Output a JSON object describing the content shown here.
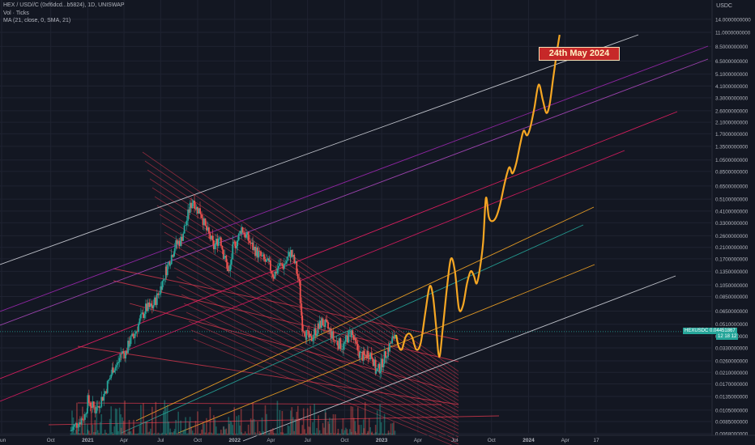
{
  "header": {
    "symbol_line": "HEX / USD//C (0xf6dcd...b5824), 1D, UNISWAP",
    "indicator1": "Vol · Ticks",
    "indicator2": "MA (21, close, 0, SMA, 21)"
  },
  "unit_label": "USDC",
  "annotation": "24th May 2024",
  "price_tag": {
    "symbol": "HEXUSDC",
    "value": "0.04451867",
    "sub": "12 18 12"
  },
  "chart_data": {
    "type": "line",
    "y_scale": "log",
    "ylim": [
      0.0066,
      15.5
    ],
    "x_ticks": [
      "Jun",
      "Oct",
      "2021",
      "Apr",
      "Jul",
      "Oct",
      "2022",
      "Apr",
      "Jul",
      "Oct",
      "2023",
      "Apr",
      "Jul",
      "Oct",
      "2024",
      "Apr",
      "17"
    ],
    "y_ticks": [
      "14.0000000000",
      "11.0000000000",
      "8.5000000000",
      "6.5000000000",
      "5.1000000000",
      "4.1000000000",
      "3.3000000000",
      "2.6000000000",
      "2.1000000000",
      "1.7000000000",
      "1.3500000000",
      "1.0500000000",
      "0.8500000000",
      "0.6500000000",
      "0.5100000000",
      "0.4100000000",
      "0.3300000000",
      "0.2600000000",
      "0.2100000000",
      "0.1700000000",
      "0.1350000000",
      "0.1050000000",
      "0.0850000000",
      "0.0650000000",
      "0.0510000000",
      "0.0410000000",
      "0.0330000000",
      "0.0260000000",
      "0.0210000000",
      "0.0170000000",
      "0.0135000000",
      "0.0105000000",
      "0.0085000000",
      "0.0068000000"
    ],
    "y_tick_values": [
      14,
      11,
      8.5,
      6.5,
      5.1,
      4.1,
      3.3,
      2.6,
      2.1,
      1.7,
      1.35,
      1.05,
      0.85,
      0.65,
      0.51,
      0.41,
      0.33,
      0.26,
      0.21,
      0.17,
      0.135,
      0.105,
      0.085,
      0.065,
      0.051,
      0.041,
      0.033,
      0.026,
      0.021,
      0.017,
      0.0135,
      0.0105,
      0.0085,
      0.0068
    ],
    "price_series": [
      [
        "2020-11-20",
        0.0072
      ],
      [
        "2020-12-10",
        0.0085
      ],
      [
        "2020-12-25",
        0.0095
      ],
      [
        "2021-01-01",
        0.0125
      ],
      [
        "2021-01-20",
        0.0105
      ],
      [
        "2021-02-10",
        0.014
      ],
      [
        "2021-02-25",
        0.019
      ],
      [
        "2021-03-05",
        0.023
      ],
      [
        "2021-03-15",
        0.024
      ],
      [
        "2021-03-25",
        0.03
      ],
      [
        "2021-04-05",
        0.03
      ],
      [
        "2021-04-15",
        0.037
      ],
      [
        "2021-04-25",
        0.041
      ],
      [
        "2021-05-10",
        0.054
      ],
      [
        "2021-05-25",
        0.068
      ],
      [
        "2021-06-10",
        0.07
      ],
      [
        "2021-06-25",
        0.088
      ],
      [
        "2021-07-05",
        0.11
      ],
      [
        "2021-07-15",
        0.14
      ],
      [
        "2021-07-25",
        0.17
      ],
      [
        "2021-08-05",
        0.215
      ],
      [
        "2021-08-20",
        0.24
      ],
      [
        "2021-09-01",
        0.32
      ],
      [
        "2021-09-12",
        0.44
      ],
      [
        "2021-09-20",
        0.51
      ],
      [
        "2021-09-28",
        0.43
      ],
      [
        "2021-10-08",
        0.41
      ],
      [
        "2021-10-20",
        0.3
      ],
      [
        "2021-11-01",
        0.25
      ],
      [
        "2021-11-10",
        0.21
      ],
      [
        "2021-11-25",
        0.26
      ],
      [
        "2021-12-05",
        0.18
      ],
      [
        "2021-12-18",
        0.13
      ],
      [
        "2021-12-28",
        0.21
      ],
      [
        "2022-01-08",
        0.24
      ],
      [
        "2022-01-18",
        0.3
      ],
      [
        "2022-02-01",
        0.25
      ],
      [
        "2022-02-15",
        0.21
      ],
      [
        "2022-03-01",
        0.185
      ],
      [
        "2022-03-15",
        0.165
      ],
      [
        "2022-03-28",
        0.15
      ],
      [
        "2022-04-08",
        0.125
      ],
      [
        "2022-04-20",
        0.15
      ],
      [
        "2022-05-01",
        0.15
      ],
      [
        "2022-05-10",
        0.165
      ],
      [
        "2022-05-20",
        0.19
      ],
      [
        "2022-06-01",
        0.15
      ],
      [
        "2022-06-10",
        0.105
      ],
      [
        "2022-06-18",
        0.05
      ],
      [
        "2022-06-28",
        0.042
      ],
      [
        "2022-07-08",
        0.038
      ],
      [
        "2022-07-18",
        0.044
      ],
      [
        "2022-07-28",
        0.048
      ],
      [
        "2022-08-05",
        0.053
      ],
      [
        "2022-08-15",
        0.05
      ],
      [
        "2022-08-25",
        0.045
      ],
      [
        "2022-09-05",
        0.038
      ],
      [
        "2022-09-15",
        0.036
      ],
      [
        "2022-09-28",
        0.034
      ],
      [
        "2022-10-08",
        0.04
      ],
      [
        "2022-10-18",
        0.044
      ],
      [
        "2022-10-28",
        0.035
      ],
      [
        "2022-11-08",
        0.029
      ],
      [
        "2022-11-18",
        0.028
      ],
      [
        "2022-11-28",
        0.03
      ],
      [
        "2022-12-08",
        0.029
      ],
      [
        "2022-12-18",
        0.021
      ],
      [
        "2022-12-28",
        0.023
      ],
      [
        "2023-01-08",
        0.028
      ],
      [
        "2023-01-18",
        0.033
      ],
      [
        "2023-01-28",
        0.038
      ],
      [
        "2023-02-05",
        0.0445
      ]
    ],
    "projection_series": [
      [
        "2023-02-06",
        0.042
      ],
      [
        "2023-02-12",
        0.034
      ],
      [
        "2023-02-20",
        0.032
      ],
      [
        "2023-03-01",
        0.04
      ],
      [
        "2023-03-10",
        0.043
      ],
      [
        "2023-03-18",
        0.04
      ],
      [
        "2023-03-28",
        0.032
      ],
      [
        "2023-04-08",
        0.036
      ],
      [
        "2023-04-20",
        0.065
      ],
      [
        "2023-04-30",
        0.102
      ],
      [
        "2023-05-08",
        0.088
      ],
      [
        "2023-05-16",
        0.05
      ],
      [
        "2023-05-24",
        0.028
      ],
      [
        "2023-06-02",
        0.048
      ],
      [
        "2023-06-12",
        0.098
      ],
      [
        "2023-06-22",
        0.17
      ],
      [
        "2023-07-02",
        0.135
      ],
      [
        "2023-07-12",
        0.068
      ],
      [
        "2023-07-22",
        0.072
      ],
      [
        "2023-08-01",
        0.108
      ],
      [
        "2023-08-10",
        0.135
      ],
      [
        "2023-08-18",
        0.125
      ],
      [
        "2023-08-25",
        0.108
      ],
      [
        "2023-09-02",
        0.142
      ],
      [
        "2023-09-10",
        0.23
      ],
      [
        "2023-09-17",
        0.52
      ],
      [
        "2023-09-24",
        0.37
      ],
      [
        "2023-10-02",
        0.34
      ],
      [
        "2023-10-12",
        0.365
      ],
      [
        "2023-10-22",
        0.46
      ],
      [
        "2023-11-01",
        0.65
      ],
      [
        "2023-11-09",
        0.83
      ],
      [
        "2023-11-15",
        0.92
      ],
      [
        "2023-11-22",
        0.82
      ],
      [
        "2023-12-01",
        0.98
      ],
      [
        "2023-12-12",
        1.45
      ],
      [
        "2023-12-20",
        1.8
      ],
      [
        "2023-12-28",
        1.65
      ],
      [
        "2024-01-05",
        1.9
      ],
      [
        "2024-01-15",
        2.7
      ],
      [
        "2024-01-26",
        4.2
      ],
      [
        "2024-02-05",
        3.2
      ],
      [
        "2024-02-14",
        2.5
      ],
      [
        "2024-02-22",
        2.9
      ],
      [
        "2024-03-02",
        4.7
      ],
      [
        "2024-03-10",
        7.2
      ],
      [
        "2024-03-18",
        10.5
      ]
    ],
    "colors": {
      "projection": "#f5a623",
      "up": "#26a69a",
      "down": "#ef5350",
      "annotation": "#c62828"
    }
  }
}
